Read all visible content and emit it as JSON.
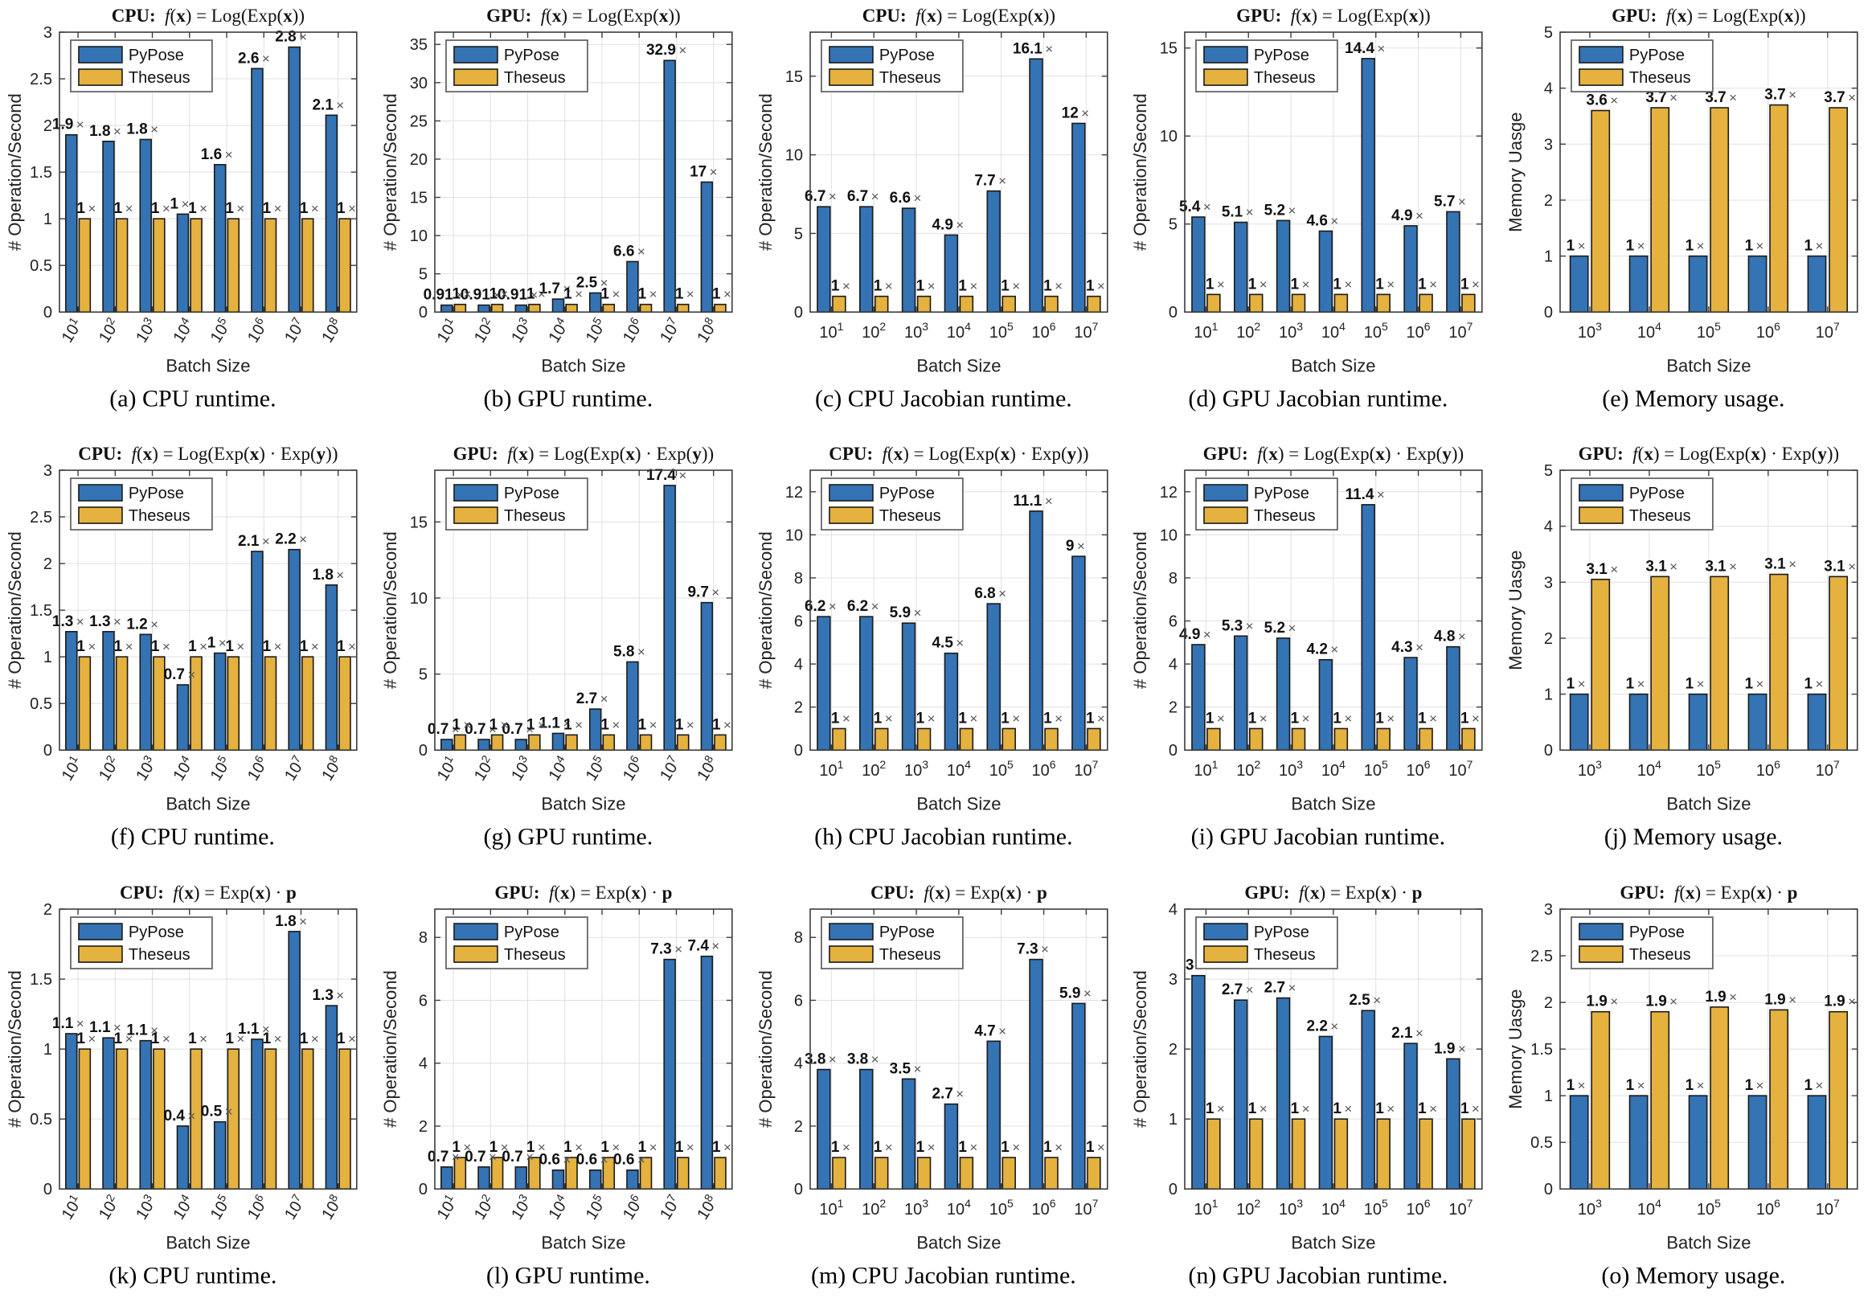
{
  "figure_legend": {
    "pypose": "PyPose",
    "theseus": "Theseus"
  },
  "colors": {
    "pypose": "#3473B4",
    "theseus": "#E5B13F",
    "bar_edge": "#1a1a1a",
    "grid": "#e0e0e0",
    "frame": "#3c3c3c",
    "label_text": "#111111",
    "times_sign": "#555555"
  },
  "chart_data": [
    {
      "id": "a",
      "type": "bar",
      "title_device": "CPU",
      "title_formula": "f(x) = Log(Exp(x))",
      "ylabel": "# Operation/Second",
      "xlabel": "Batch Size",
      "caption": "(a) CPU runtime.",
      "x_base": "10",
      "x_exponents": [
        "1",
        "2",
        "3",
        "4",
        "5",
        "6",
        "7",
        "8"
      ],
      "x_rotated": true,
      "ylim": [
        0,
        3
      ],
      "yticks": [
        "0",
        "0.5",
        "1",
        "1.5",
        "2",
        "2.5",
        "3"
      ],
      "series": [
        {
          "name": "PyPose",
          "values": [
            1.9,
            1.83,
            1.85,
            1.05,
            1.58,
            2.61,
            2.84,
            2.11
          ],
          "labels": [
            "1.9",
            "1.8",
            "1.8",
            "1",
            "1.6",
            "2.6",
            "2.8",
            "2.1"
          ]
        },
        {
          "name": "Theseus",
          "values": [
            1,
            1,
            1,
            1,
            1,
            1,
            1,
            1
          ],
          "labels": [
            "1",
            "1",
            "1",
            "1",
            "1",
            "1",
            "1",
            "1"
          ]
        }
      ]
    },
    {
      "id": "b",
      "type": "bar",
      "title_device": "GPU",
      "title_formula": "f(x) = Log(Exp(x))",
      "ylabel": "# Operation/Second",
      "xlabel": "Batch Size",
      "caption": "(b) GPU runtime.",
      "x_base": "10",
      "x_exponents": [
        "1",
        "2",
        "3",
        "4",
        "5",
        "6",
        "7",
        "8"
      ],
      "x_rotated": true,
      "ylim": [
        0,
        36.6
      ],
      "yticks": [
        "0",
        "5",
        "10",
        "15",
        "20",
        "25",
        "30",
        "35"
      ],
      "series": [
        {
          "name": "PyPose",
          "values": [
            0.91,
            0.91,
            0.91,
            1.7,
            2.5,
            6.6,
            32.9,
            17
          ],
          "labels": [
            "0.91",
            "0.91",
            "0.91",
            "1.7",
            "2.5",
            "6.6",
            "32.9",
            "17"
          ]
        },
        {
          "name": "Theseus",
          "values": [
            1,
            1,
            1,
            1,
            1,
            1,
            1,
            1
          ],
          "labels": [
            "1",
            "1",
            "1",
            "1",
            "1",
            "1",
            "1",
            "1"
          ]
        }
      ]
    },
    {
      "id": "c",
      "type": "bar",
      "title_device": "CPU",
      "title_formula": "f(x) = Log(Exp(x))",
      "ylabel": "# Operation/Second",
      "xlabel": "Batch Size",
      "caption": "(c) CPU Jacobian runtime.",
      "x_base": "10",
      "x_exponents": [
        "1",
        "2",
        "3",
        "4",
        "5",
        "6",
        "7"
      ],
      "x_rotated": false,
      "ylim": [
        0,
        17.8
      ],
      "yticks": [
        "0",
        "5",
        "10",
        "15"
      ],
      "series": [
        {
          "name": "PyPose",
          "values": [
            6.7,
            6.7,
            6.6,
            4.9,
            7.7,
            16.1,
            12
          ],
          "labels": [
            "6.7",
            "6.7",
            "6.6",
            "4.9",
            "7.7",
            "16.1",
            "12"
          ]
        },
        {
          "name": "Theseus",
          "values": [
            1,
            1,
            1,
            1,
            1,
            1,
            1
          ],
          "labels": [
            "1",
            "1",
            "1",
            "1",
            "1",
            "1",
            "1"
          ]
        }
      ]
    },
    {
      "id": "d",
      "type": "bar",
      "title_device": "GPU",
      "title_formula": "f(x) = Log(Exp(x))",
      "ylabel": "# Operation/Second",
      "xlabel": "Batch Size",
      "caption": "(d) GPU Jacobian runtime.",
      "x_base": "10",
      "x_exponents": [
        "1",
        "2",
        "3",
        "4",
        "5",
        "6",
        "7"
      ],
      "x_rotated": false,
      "ylim": [
        0,
        15.9
      ],
      "yticks": [
        "0",
        "5",
        "10",
        "15"
      ],
      "series": [
        {
          "name": "PyPose",
          "values": [
            5.4,
            5.1,
            5.2,
            4.6,
            14.4,
            4.9,
            5.7
          ],
          "labels": [
            "5.4",
            "5.1",
            "5.2",
            "4.6",
            "14.4",
            "4.9",
            "5.7"
          ]
        },
        {
          "name": "Theseus",
          "values": [
            1,
            1,
            1,
            1,
            1,
            1,
            1
          ],
          "labels": [
            "1",
            "1",
            "1",
            "1",
            "1",
            "1",
            "1"
          ]
        }
      ]
    },
    {
      "id": "e",
      "type": "bar",
      "title_device": "GPU",
      "title_formula": "f(x) = Log(Exp(x))",
      "ylabel": "Memory Uasge",
      "xlabel": "Batch Size",
      "caption": "(e) Memory usage.",
      "x_base": "10",
      "x_exponents": [
        "3",
        "4",
        "5",
        "6",
        "7"
      ],
      "x_rotated": false,
      "ylim": [
        0,
        5
      ],
      "yticks": [
        "0",
        "1",
        "2",
        "3",
        "4",
        "5"
      ],
      "series": [
        {
          "name": "PyPose",
          "values": [
            1,
            1,
            1,
            1,
            1
          ],
          "labels": [
            "1",
            "1",
            "1",
            "1",
            "1"
          ]
        },
        {
          "name": "Theseus",
          "values": [
            3.6,
            3.65,
            3.65,
            3.7,
            3.65
          ],
          "labels": [
            "3.6",
            "3.7",
            "3.7",
            "3.7",
            "3.7"
          ]
        }
      ]
    },
    {
      "id": "f",
      "type": "bar",
      "title_device": "CPU",
      "title_formula": "f(x) = Log(Exp(x) · Exp(y))",
      "ylabel": "# Operation/Second",
      "xlabel": "Batch Size",
      "caption": "(f) CPU runtime.",
      "x_base": "10",
      "x_exponents": [
        "1",
        "2",
        "3",
        "4",
        "5",
        "6",
        "7",
        "8"
      ],
      "x_rotated": true,
      "ylim": [
        0,
        3
      ],
      "yticks": [
        "0",
        "0.5",
        "1",
        "1.5",
        "2",
        "2.5",
        "3"
      ],
      "series": [
        {
          "name": "PyPose",
          "values": [
            1.27,
            1.27,
            1.24,
            0.7,
            1.04,
            2.13,
            2.15,
            1.77
          ],
          "labels": [
            "1.3",
            "1.3",
            "1.2",
            "0.7",
            "1",
            "2.1",
            "2.2",
            "1.8"
          ]
        },
        {
          "name": "Theseus",
          "values": [
            1,
            1,
            1,
            1,
            1,
            1,
            1,
            1
          ],
          "labels": [
            "1",
            "1",
            "1",
            "1",
            "1",
            "1",
            "1",
            "1"
          ]
        }
      ]
    },
    {
      "id": "g",
      "type": "bar",
      "title_device": "GPU",
      "title_formula": "f(x) = Log(Exp(x) · Exp(y))",
      "ylabel": "# Operation/Second",
      "xlabel": "Batch Size",
      "caption": "(g) GPU runtime.",
      "x_base": "10",
      "x_exponents": [
        "1",
        "2",
        "3",
        "4",
        "5",
        "6",
        "7",
        "8"
      ],
      "x_rotated": true,
      "ylim": [
        0,
        18.4
      ],
      "yticks": [
        "0",
        "5",
        "10",
        "15"
      ],
      "series": [
        {
          "name": "PyPose",
          "values": [
            0.7,
            0.7,
            0.7,
            1.1,
            2.7,
            5.8,
            17.4,
            9.7
          ],
          "labels": [
            "0.7",
            "0.7",
            "0.7",
            "1.1",
            "2.7",
            "5.8",
            "17.4",
            "9.7"
          ]
        },
        {
          "name": "Theseus",
          "values": [
            1,
            1,
            1,
            1,
            1,
            1,
            1,
            1
          ],
          "labels": [
            "1",
            "1",
            "1",
            "1",
            "1",
            "1",
            "1",
            "1"
          ]
        }
      ]
    },
    {
      "id": "h",
      "type": "bar",
      "title_device": "CPU",
      "title_formula": "f(x) = Log(Exp(x) · Exp(y))",
      "ylabel": "# Operation/Second",
      "xlabel": "Batch Size",
      "caption": "(h) CPU Jacobian runtime.",
      "x_base": "10",
      "x_exponents": [
        "1",
        "2",
        "3",
        "4",
        "5",
        "6",
        "7"
      ],
      "x_rotated": false,
      "ylim": [
        0,
        13
      ],
      "yticks": [
        "0",
        "2",
        "4",
        "6",
        "8",
        "10",
        "12"
      ],
      "series": [
        {
          "name": "PyPose",
          "values": [
            6.2,
            6.2,
            5.9,
            4.5,
            6.8,
            11.1,
            9
          ],
          "labels": [
            "6.2",
            "6.2",
            "5.9",
            "4.5",
            "6.8",
            "11.1",
            "9"
          ]
        },
        {
          "name": "Theseus",
          "values": [
            1,
            1,
            1,
            1,
            1,
            1,
            1
          ],
          "labels": [
            "1",
            "1",
            "1",
            "1",
            "1",
            "1",
            "1"
          ]
        }
      ]
    },
    {
      "id": "i",
      "type": "bar",
      "title_device": "GPU",
      "title_formula": "f(x) = Log(Exp(x) · Exp(y))",
      "ylabel": "# Operation/Second",
      "xlabel": "Batch Size",
      "caption": "(i) GPU Jacobian runtime.",
      "x_base": "10",
      "x_exponents": [
        "1",
        "2",
        "3",
        "4",
        "5",
        "6",
        "7"
      ],
      "x_rotated": false,
      "ylim": [
        0,
        13
      ],
      "yticks": [
        "0",
        "2",
        "4",
        "6",
        "8",
        "10",
        "12"
      ],
      "series": [
        {
          "name": "PyPose",
          "values": [
            4.9,
            5.3,
            5.2,
            4.2,
            11.4,
            4.3,
            4.8
          ],
          "labels": [
            "4.9",
            "5.3",
            "5.2",
            "4.2",
            "11.4",
            "4.3",
            "4.8"
          ]
        },
        {
          "name": "Theseus",
          "values": [
            1,
            1,
            1,
            1,
            1,
            1,
            1
          ],
          "labels": [
            "1",
            "1",
            "1",
            "1",
            "1",
            "1",
            "1"
          ]
        }
      ]
    },
    {
      "id": "j",
      "type": "bar",
      "title_device": "GPU",
      "title_formula": "f(x) = Log(Exp(x) · Exp(y))",
      "ylabel": "Memory Uasge",
      "xlabel": "Batch Size",
      "caption": "(j) Memory usage.",
      "x_base": "10",
      "x_exponents": [
        "3",
        "4",
        "5",
        "6",
        "7"
      ],
      "x_rotated": false,
      "ylim": [
        0,
        5
      ],
      "yticks": [
        "0",
        "1",
        "2",
        "3",
        "4",
        "5"
      ],
      "series": [
        {
          "name": "PyPose",
          "values": [
            1,
            1,
            1,
            1,
            1
          ],
          "labels": [
            "1",
            "1",
            "1",
            "1",
            "1"
          ]
        },
        {
          "name": "Theseus",
          "values": [
            3.05,
            3.1,
            3.1,
            3.14,
            3.1
          ],
          "labels": [
            "3.1",
            "3.1",
            "3.1",
            "3.1",
            "3.1"
          ]
        }
      ]
    },
    {
      "id": "k",
      "type": "bar",
      "title_device": "CPU",
      "title_formula": "f(x) = Exp(x) · p",
      "ylabel": "# Operation/Second",
      "xlabel": "Batch Size",
      "caption": "(k) CPU runtime.",
      "x_base": "10",
      "x_exponents": [
        "1",
        "2",
        "3",
        "4",
        "5",
        "6",
        "7",
        "8"
      ],
      "x_rotated": true,
      "ylim": [
        0,
        2
      ],
      "yticks": [
        "0",
        "0.5",
        "1",
        "1.5",
        "2"
      ],
      "series": [
        {
          "name": "PyPose",
          "values": [
            1.11,
            1.08,
            1.06,
            0.45,
            0.48,
            1.07,
            1.84,
            1.31
          ],
          "labels": [
            "1.1",
            "1.1",
            "1.1",
            "0.4",
            "0.5",
            "1.1",
            "1.8",
            "1.3"
          ]
        },
        {
          "name": "Theseus",
          "values": [
            1,
            1,
            1,
            1,
            1,
            1,
            1,
            1
          ],
          "labels": [
            "1",
            "1",
            "1",
            "1",
            "1",
            "1",
            "1",
            "1"
          ]
        }
      ]
    },
    {
      "id": "l",
      "type": "bar",
      "title_device": "GPU",
      "title_formula": "f(x) = Exp(x) · p",
      "ylabel": "# Operation/Second",
      "xlabel": "Batch Size",
      "caption": "(l) GPU runtime.",
      "x_base": "10",
      "x_exponents": [
        "1",
        "2",
        "3",
        "4",
        "5",
        "6",
        "7",
        "8"
      ],
      "x_rotated": true,
      "ylim": [
        0,
        8.9
      ],
      "yticks": [
        "0",
        "2",
        "4",
        "6",
        "8"
      ],
      "series": [
        {
          "name": "PyPose",
          "values": [
            0.7,
            0.7,
            0.7,
            0.6,
            0.6,
            0.6,
            7.3,
            7.4
          ],
          "labels": [
            "0.7",
            "0.7",
            "0.7",
            "0.6",
            "0.6",
            "0.6",
            "7.3",
            "7.4"
          ]
        },
        {
          "name": "Theseus",
          "values": [
            1,
            1,
            1,
            1,
            1,
            1,
            1,
            1
          ],
          "labels": [
            "1",
            "1",
            "1",
            "1",
            "1",
            "1",
            "1",
            "1"
          ]
        }
      ]
    },
    {
      "id": "m",
      "type": "bar",
      "title_device": "CPU",
      "title_formula": "f(x) = Exp(x) · p",
      "ylabel": "# Operation/Second",
      "xlabel": "Batch Size",
      "caption": "(m) CPU Jacobian runtime.",
      "x_base": "10",
      "x_exponents": [
        "1",
        "2",
        "3",
        "4",
        "5",
        "6",
        "7"
      ],
      "x_rotated": false,
      "ylim": [
        0,
        8.9
      ],
      "yticks": [
        "0",
        "2",
        "4",
        "6",
        "8"
      ],
      "series": [
        {
          "name": "PyPose",
          "values": [
            3.8,
            3.8,
            3.5,
            2.7,
            4.7,
            7.3,
            5.9
          ],
          "labels": [
            "3.8",
            "3.8",
            "3.5",
            "2.7",
            "4.7",
            "7.3",
            "5.9"
          ]
        },
        {
          "name": "Theseus",
          "values": [
            1,
            1,
            1,
            1,
            1,
            1,
            1
          ],
          "labels": [
            "1",
            "1",
            "1",
            "1",
            "1",
            "1",
            "1"
          ]
        }
      ]
    },
    {
      "id": "n",
      "type": "bar",
      "title_device": "GPU",
      "title_formula": "f(x) = Exp(x) · p",
      "ylabel": "# Operation/Second",
      "xlabel": "Batch Size",
      "caption": "(n) GPU Jacobian runtime.",
      "x_base": "10",
      "x_exponents": [
        "1",
        "2",
        "3",
        "4",
        "5",
        "6",
        "7"
      ],
      "x_rotated": false,
      "ylim": [
        0,
        4
      ],
      "yticks": [
        "0",
        "1",
        "2",
        "3",
        "4"
      ],
      "series": [
        {
          "name": "PyPose",
          "values": [
            3.05,
            2.7,
            2.73,
            2.18,
            2.55,
            2.08,
            1.86
          ],
          "labels": [
            "3",
            "2.7",
            "2.7",
            "2.2",
            "2.5",
            "2.1",
            "1.9"
          ]
        },
        {
          "name": "Theseus",
          "values": [
            1,
            1,
            1,
            1,
            1,
            1,
            1
          ],
          "labels": [
            "1",
            "1",
            "1",
            "1",
            "1",
            "1",
            "1"
          ]
        }
      ]
    },
    {
      "id": "o",
      "type": "bar",
      "title_device": "GPU",
      "title_formula": "f(x) = Exp(x) · p",
      "ylabel": "Memory Uasge",
      "xlabel": "Batch Size",
      "caption": "(o) Memory usage.",
      "x_base": "10",
      "x_exponents": [
        "3",
        "4",
        "5",
        "6",
        "7"
      ],
      "x_rotated": false,
      "ylim": [
        0,
        3
      ],
      "yticks": [
        "0",
        "0.5",
        "1",
        "1.5",
        "2",
        "2.5",
        "3"
      ],
      "series": [
        {
          "name": "PyPose",
          "values": [
            1,
            1,
            1,
            1,
            1
          ],
          "labels": [
            "1",
            "1",
            "1",
            "1",
            "1"
          ]
        },
        {
          "name": "Theseus",
          "values": [
            1.9,
            1.9,
            1.95,
            1.92,
            1.9
          ],
          "labels": [
            "1.9",
            "1.9",
            "1.9",
            "1.9",
            "1.9"
          ]
        }
      ]
    }
  ]
}
